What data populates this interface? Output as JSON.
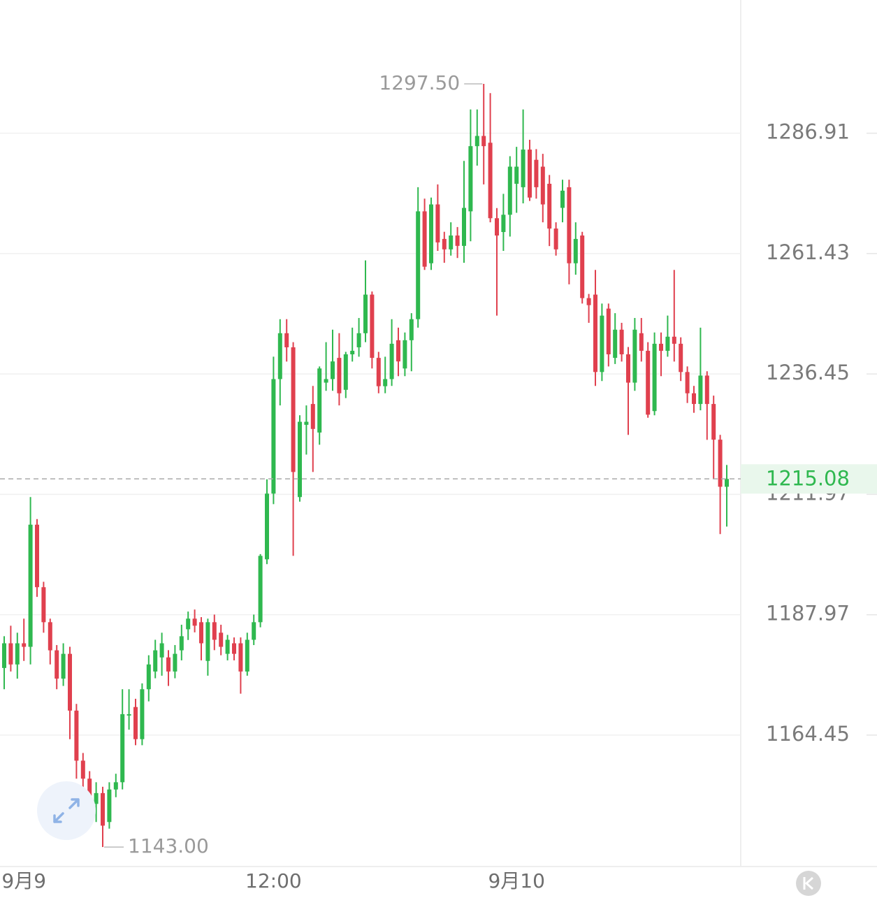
{
  "chart_data": {
    "type": "candlestick",
    "log_scale": true,
    "grid": true,
    "up_color": "#2fb84f",
    "down_color": "#e0404e",
    "ylim": [
      1139.3,
      1315.7
    ],
    "yticks": [
      1164.45,
      1187.97,
      1211.97,
      1236.45,
      1261.43,
      1286.91
    ],
    "max_label": {
      "value": 1297.5,
      "label": "1297.50"
    },
    "min_label": {
      "value": 1143,
      "label": "1143.00"
    },
    "last_price": 1215.08,
    "categories": [
      null,
      null,
      null,
      "9月9",
      null,
      null,
      null,
      null,
      null,
      null,
      null,
      null,
      null,
      null,
      null,
      null,
      null,
      null,
      null,
      null,
      null,
      null,
      null,
      null,
      null,
      null,
      null,
      null,
      null,
      null,
      null,
      null,
      null,
      null,
      null,
      null,
      null,
      null,
      null,
      null,
      null,
      "12:00",
      null,
      null,
      null,
      null,
      null,
      null,
      null,
      null,
      null,
      null,
      null,
      null,
      null,
      null,
      null,
      null,
      null,
      null,
      null,
      null,
      null,
      null,
      null,
      null,
      null,
      null,
      null,
      null,
      null,
      null,
      null,
      null,
      null,
      null,
      null,
      null,
      "9月10",
      null,
      null,
      null,
      null,
      null,
      null,
      null,
      null,
      null,
      null,
      null,
      null,
      null,
      null,
      null,
      null,
      null,
      null,
      null,
      null,
      null,
      null,
      null,
      null,
      null,
      null,
      null,
      null,
      null,
      null,
      null,
      null
    ],
    "ohlc": [
      [
        1177.51,
        1183.74,
        1173.36,
        1182.35
      ],
      [
        1182.35,
        1185.81,
        1176.82,
        1178.2
      ],
      [
        1178.2,
        1184.43,
        1175.43,
        1182.35
      ],
      [
        1182.35,
        1187.2,
        1178.89,
        1181.66
      ],
      [
        1181.66,
        1211.42,
        1178.2,
        1205.88
      ],
      [
        1205.88,
        1207,
        1191.5,
        1193.42
      ],
      [
        1193.42,
        1194.5,
        1184.43,
        1186.5
      ],
      [
        1186.5,
        1187.2,
        1178.2,
        1180.97
      ],
      [
        1180.97,
        1182,
        1173.36,
        1175.43
      ],
      [
        1175.43,
        1182.35,
        1174,
        1180.28
      ],
      [
        1180.28,
        1181.66,
        1163.67,
        1169.2
      ],
      [
        1169.2,
        1170.5,
        1156.06,
        1159.52
      ],
      [
        1159.52,
        1161,
        1152.6,
        1156.06
      ],
      [
        1156.06,
        1157.5,
        1148.5,
        1151.22
      ],
      [
        1151.22,
        1155.37,
        1147.76,
        1153.29
      ],
      [
        1153.29,
        1154.5,
        1143,
        1147.07
      ],
      [
        1147.76,
        1155.37,
        1146.5,
        1153.98
      ],
      [
        1153.98,
        1157,
        1152.5,
        1155.37
      ],
      [
        1155.37,
        1173.36,
        1154,
        1168.51
      ],
      [
        1168.24,
        1173.36,
        1165.5,
        1168.51
      ],
      [
        1169.9,
        1171.5,
        1162.5,
        1163.67
      ],
      [
        1163.67,
        1174.5,
        1162.5,
        1173.36
      ],
      [
        1173.36,
        1180,
        1171,
        1178.2
      ],
      [
        1176.82,
        1183.04,
        1175.5,
        1180.97
      ],
      [
        1179.58,
        1184.43,
        1176,
        1182.35
      ],
      [
        1179.58,
        1181,
        1174,
        1176.82
      ],
      [
        1176.82,
        1182,
        1175.5,
        1180.28
      ],
      [
        1180.97,
        1186,
        1179,
        1183.74
      ],
      [
        1185.11,
        1188.6,
        1183,
        1187.2
      ],
      [
        1187.2,
        1189,
        1184.5,
        1185.81
      ],
      [
        1186.5,
        1187.5,
        1179,
        1182.35
      ],
      [
        1178.89,
        1187.2,
        1176,
        1186.5
      ],
      [
        1186.5,
        1188,
        1181,
        1183.04
      ],
      [
        1184.43,
        1186,
        1180,
        1181.66
      ],
      [
        1180.28,
        1184,
        1179,
        1183.04
      ],
      [
        1182.35,
        1183.5,
        1179,
        1180.28
      ],
      [
        1182.35,
        1183.5,
        1172.5,
        1176.82
      ],
      [
        1176.82,
        1184.43,
        1176,
        1183.04
      ],
      [
        1183.04,
        1188,
        1182,
        1186.5
      ],
      [
        1186.5,
        1200,
        1185.5,
        1199.65
      ],
      [
        1198.96,
        1215,
        1198,
        1212.12
      ],
      [
        1212.12,
        1240,
        1210,
        1235.4
      ],
      [
        1235.4,
        1247.76,
        1230,
        1244.85
      ],
      [
        1244.85,
        1247.76,
        1239,
        1241.94
      ],
      [
        1241.94,
        1243,
        1199.65,
        1216.48
      ],
      [
        1211.42,
        1228,
        1210.5,
        1226.67
      ],
      [
        1226.05,
        1230,
        1220,
        1226.67
      ],
      [
        1230.3,
        1234,
        1216.48,
        1225.21
      ],
      [
        1224.48,
        1238,
        1222,
        1237.58
      ],
      [
        1234.67,
        1243,
        1233,
        1235.4
      ],
      [
        1235.4,
        1245.58,
        1233,
        1239.03
      ],
      [
        1239.76,
        1244.85,
        1230,
        1232.49
      ],
      [
        1233.2,
        1241,
        1231.5,
        1240.49
      ],
      [
        1240.49,
        1246,
        1239,
        1241.22
      ],
      [
        1241.94,
        1248,
        1240,
        1244.85
      ],
      [
        1244.85,
        1260,
        1243,
        1252.86
      ],
      [
        1252.86,
        1253.5,
        1237.58,
        1239.76
      ],
      [
        1239.76,
        1241,
        1232.49,
        1233.94
      ],
      [
        1233.94,
        1240,
        1232.5,
        1235.4
      ],
      [
        1235.4,
        1247.76,
        1234,
        1242.67
      ],
      [
        1243.4,
        1246,
        1236,
        1239.03
      ],
      [
        1237.58,
        1245,
        1236,
        1243.4
      ],
      [
        1243.4,
        1249,
        1237,
        1247.76
      ],
      [
        1247.76,
        1275.41,
        1246,
        1270.31
      ],
      [
        1270.31,
        1273,
        1258,
        1258.68
      ],
      [
        1259.4,
        1273.22,
        1258,
        1271.77
      ],
      [
        1271.77,
        1276,
        1262,
        1263.77
      ],
      [
        1264.5,
        1266,
        1259.5,
        1262.31
      ],
      [
        1262.31,
        1268,
        1261,
        1265.22
      ],
      [
        1265.22,
        1267,
        1260.5,
        1263.04
      ],
      [
        1263.04,
        1281,
        1259.5,
        1271.04
      ],
      [
        1270.31,
        1292,
        1264,
        1284.14
      ],
      [
        1284.14,
        1292,
        1280,
        1286.32
      ],
      [
        1286.32,
        1297.5,
        1276,
        1284.14
      ],
      [
        1284.87,
        1295.5,
        1268,
        1268.86
      ],
      [
        1268.86,
        1271,
        1248.49,
        1265.22
      ],
      [
        1265.95,
        1274,
        1262,
        1269.59
      ],
      [
        1269.59,
        1282,
        1265,
        1279.77
      ],
      [
        1276.14,
        1284,
        1270,
        1279.77
      ],
      [
        1275.41,
        1292,
        1272,
        1283.41
      ],
      [
        1283.41,
        1285.5,
        1272.5,
        1273.22
      ],
      [
        1281.23,
        1283.5,
        1273,
        1275.41
      ],
      [
        1279.77,
        1282.5,
        1268,
        1271.77
      ],
      [
        1276.14,
        1278,
        1263,
        1266.68
      ],
      [
        1266.68,
        1268,
        1261,
        1262.31
      ],
      [
        1271.04,
        1277,
        1268,
        1274.68
      ],
      [
        1275.41,
        1277,
        1255,
        1259.4
      ],
      [
        1259.4,
        1268,
        1257,
        1264.5
      ],
      [
        1265.22,
        1266,
        1251,
        1252.13
      ],
      [
        1252.13,
        1253,
        1247,
        1250.67
      ],
      [
        1252.86,
        1258,
        1234,
        1236.85
      ],
      [
        1236.85,
        1251,
        1235,
        1248.49
      ],
      [
        1249.95,
        1251,
        1238,
        1240.49
      ],
      [
        1239.76,
        1249,
        1238.5,
        1245.58
      ],
      [
        1245.58,
        1247,
        1239,
        1240.49
      ],
      [
        1240.49,
        1242,
        1224,
        1234.67
      ],
      [
        1234.67,
        1248,
        1233,
        1245.58
      ],
      [
        1244.85,
        1248,
        1239,
        1241.22
      ],
      [
        1241.22,
        1243,
        1227.5,
        1228.12
      ],
      [
        1228.85,
        1245,
        1228,
        1242.67
      ],
      [
        1242.67,
        1245,
        1236,
        1241.22
      ],
      [
        1241.22,
        1248.5,
        1240,
        1244.13
      ],
      [
        1244.13,
        1258,
        1239,
        1242.67
      ],
      [
        1242.67,
        1244,
        1235,
        1236.85
      ],
      [
        1236.85,
        1238,
        1230.5,
        1232.49
      ],
      [
        1232.49,
        1234,
        1228.5,
        1230.3
      ],
      [
        1230.3,
        1246,
        1229,
        1236.12
      ],
      [
        1236.12,
        1237,
        1223,
        1230.3
      ],
      [
        1230.3,
        1232,
        1215,
        1223.03
      ],
      [
        1223.03,
        1224,
        1204,
        1213.5
      ],
      [
        1213.5,
        1217.9,
        1205.5,
        1215.08
      ]
    ]
  }
}
